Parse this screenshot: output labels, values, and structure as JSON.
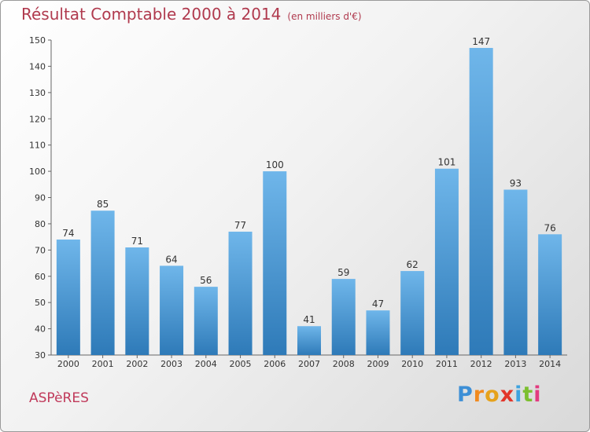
{
  "title": "Résultat Comptable 2000 à 2014",
  "subtitle": "(en milliers d'€)",
  "commune": "ASPèRES",
  "logo": {
    "text": "Proxiti",
    "letters": [
      "P",
      "r",
      "o",
      "x",
      "i",
      "t",
      "i"
    ],
    "colors": [
      "#3d8fd6",
      "#f18a1f",
      "#e6a21c",
      "#e2352a",
      "#3fa3df",
      "#7cbf2f",
      "#e33a7f"
    ]
  },
  "colors": {
    "title": "#b03a4e",
    "bar_light": "#6fb6ea",
    "bar_dark": "#2e7ab8"
  },
  "chart_data": {
    "type": "bar",
    "title": "Résultat Comptable 2000 à 2014",
    "categories": [
      "2000",
      "2001",
      "2002",
      "2003",
      "2004",
      "2005",
      "2006",
      "2007",
      "2008",
      "2009",
      "2010",
      "2011",
      "2012",
      "2013",
      "2014"
    ],
    "values": [
      74,
      85,
      71,
      64,
      56,
      77,
      100,
      41,
      59,
      47,
      62,
      101,
      147,
      93,
      76
    ],
    "ylim": [
      30,
      150
    ],
    "yticks": [
      30,
      40,
      50,
      60,
      70,
      80,
      90,
      100,
      110,
      120,
      130,
      140,
      150
    ],
    "xlabel": "",
    "ylabel": "",
    "grid": false
  }
}
